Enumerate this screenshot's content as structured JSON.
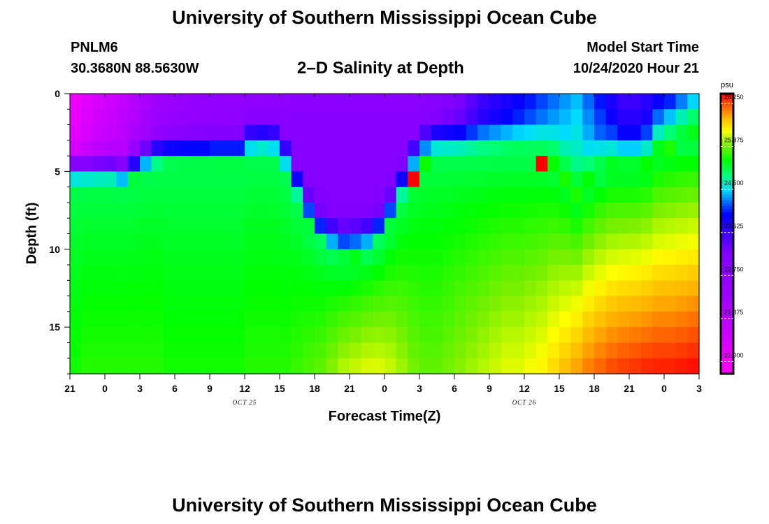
{
  "header": {
    "title": "University of Southern Mississippi Ocean Cube",
    "station": "PNLM6",
    "coords": "30.3680N 88.5630W",
    "subtitle": "2–D Salinity at Depth",
    "start_label": "Model Start Time",
    "start_value": "10/24/2020 Hour 21"
  },
  "footer": {
    "title": "University of Southern Mississippi Ocean Cube"
  },
  "colors": {
    "background": "#ffffff",
    "axis": "#000000"
  },
  "chart_data": {
    "type": "heatmap",
    "title": "2–D Salinity at Depth",
    "xlabel": "Forecast Time(Z)",
    "ylabel": "Depth (ft)",
    "ylim": [
      0,
      18
    ],
    "y_ticks": [
      0,
      5,
      10,
      15
    ],
    "x_ticks": [
      "21",
      "0",
      "3",
      "6",
      "9",
      "12",
      "15",
      "18",
      "21",
      "0",
      "3",
      "6",
      "9",
      "12",
      "15",
      "18",
      "21",
      "0",
      "3"
    ],
    "date_labels": [
      {
        "text": "OCT 25",
        "at_tick": 5
      },
      {
        "text": "OCT 26",
        "at_tick": 13
      }
    ],
    "colorbar": {
      "unit": "psu",
      "range": [
        20.75,
        26.45
      ],
      "ticks": [
        "21.000",
        "21.875",
        "22.750",
        "23.625",
        "24.500",
        "25.375",
        "26.250"
      ]
    },
    "grid_hours": 54,
    "depth_rows": 18,
    "halocline_depth_ft": [
      4.6,
      4.6,
      4.6,
      4.6,
      4.8,
      4.4,
      3.9,
      3.6,
      3.5,
      3.5,
      3.5,
      3.5,
      3.5,
      3.5,
      3.5,
      3.0,
      2.9,
      3.0,
      4.0,
      5.8,
      7.5,
      8.6,
      9.2,
      9.5,
      9.4,
      9.2,
      8.6,
      7.5,
      5.8,
      4.2,
      3.3,
      3.0,
      3.0,
      3.0,
      3.0,
      3.0,
      3.0,
      3.0,
      3.0,
      3.1,
      3.2,
      3.5,
      4.4,
      5.4,
      4.6,
      4.0,
      3.6,
      3.6,
      3.6,
      3.4,
      2.6,
      2.3,
      2.1,
      2.0
    ],
    "surface_salinity": [
      21.0,
      21.2,
      21.4,
      21.5,
      21.7,
      21.9,
      22.1,
      22.3,
      22.4,
      22.5,
      22.6,
      22.6,
      22.7,
      22.7,
      22.7,
      22.8,
      22.8,
      22.8,
      22.8,
      22.9,
      22.9,
      22.9,
      22.9,
      22.9,
      22.9,
      22.9,
      22.9,
      22.9,
      22.9,
      22.9,
      22.9,
      23.0,
      23.1,
      23.2,
      23.4,
      23.6,
      23.7,
      23.8,
      23.9,
      24.0,
      24.1,
      24.2,
      24.3,
      24.4,
      24.2,
      24.0,
      23.8,
      23.6,
      23.6,
      23.7,
      23.9,
      24.0,
      24.2,
      24.4
    ],
    "deep_salinity": [
      25.15,
      25.2,
      25.2,
      25.2,
      25.2,
      25.2,
      25.2,
      25.2,
      25.15,
      25.15,
      25.15,
      25.15,
      25.15,
      25.15,
      25.15,
      25.2,
      25.2,
      25.2,
      25.2,
      25.25,
      25.3,
      25.35,
      25.45,
      25.55,
      25.6,
      25.65,
      25.65,
      25.6,
      25.5,
      25.4,
      25.35,
      25.35,
      25.4,
      25.45,
      25.5,
      25.55,
      25.6,
      25.65,
      25.65,
      25.7,
      25.75,
      25.85,
      25.95,
      26.05,
      26.15,
      26.22,
      26.28,
      26.32,
      26.35,
      26.38,
      26.4,
      26.4,
      26.42,
      26.45
    ]
  }
}
